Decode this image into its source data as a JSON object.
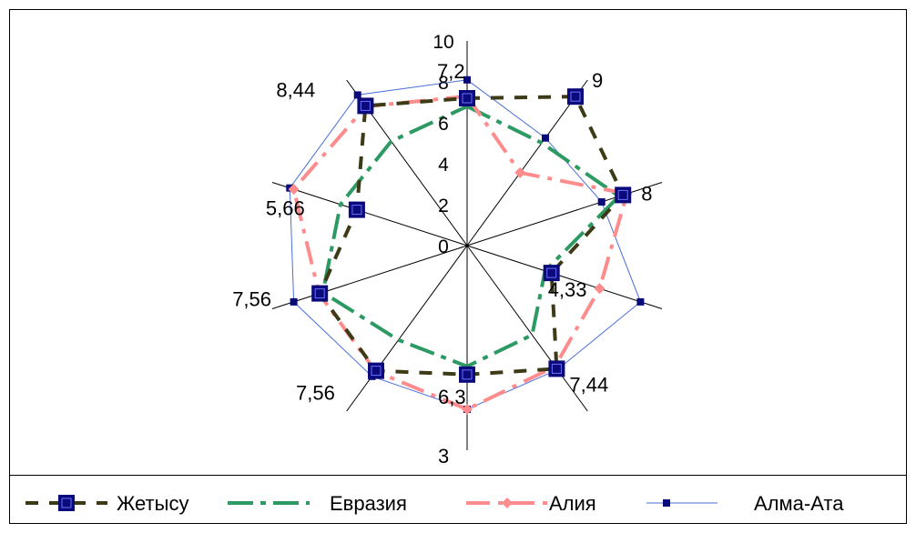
{
  "chart_data": {
    "type": "radar",
    "title": "",
    "rmax": 10,
    "axes_count": 10,
    "radial_ticks": [
      "0",
      "2",
      "4",
      "6",
      "8",
      "10"
    ],
    "point_labels": [
      "7,2",
      "9",
      "8",
      "4,33",
      "7,44",
      "6,3",
      "7,56",
      "7,56",
      "5,66",
      "8,44"
    ],
    "extra_labels": [
      "3"
    ],
    "legend_position": "bottom",
    "series": [
      {
        "name": "Жетысу",
        "color": "#3d3a16",
        "marker_color": "#0a0a7a",
        "values": [
          7.2,
          9,
          8,
          4.33,
          7.44,
          6.3,
          7.56,
          7.56,
          5.66,
          8.44
        ]
      },
      {
        "name": "Евразия",
        "color": "#2e9a63",
        "values": [
          6.8,
          6.2,
          7.8,
          4.0,
          5.4,
          5.9,
          5.7,
          7.4,
          6.5,
          6.3
        ]
      },
      {
        "name": "Алия",
        "color": "#ff8c8c",
        "marker_color": "#ff8c8c",
        "values": [
          7.3,
          4.4,
          8.2,
          6.8,
          7.3,
          8.0,
          7.6,
          7.6,
          8.9,
          8.4
        ]
      },
      {
        "name": "Алма-Ата",
        "color": "#4a6fd8",
        "marker_color": "#0a0a7a",
        "values": [
          8.1,
          6.5,
          6.9,
          8.9,
          7.5,
          8.0,
          7.9,
          8.9,
          9.1,
          9.1
        ]
      }
    ]
  }
}
